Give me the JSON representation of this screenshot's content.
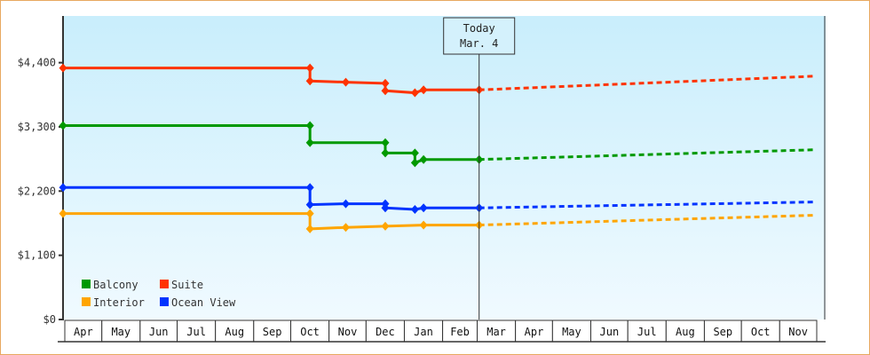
{
  "chart_data": {
    "type": "line",
    "title": "",
    "xlabel": "",
    "ylabel": "",
    "ylim": [
      0,
      5200
    ],
    "y_ticks": [
      0,
      1100,
      2200,
      3300,
      4400
    ],
    "y_tick_labels": [
      "$0",
      "$1,100",
      "$2,200",
      "$3,300",
      "$4,400"
    ],
    "x_tick_labels": [
      "Apr",
      "May",
      "Jun",
      "Jul",
      "Aug",
      "Sep",
      "Oct",
      "Nov",
      "Dec",
      "Jan",
      "Feb",
      "Mar",
      "Apr",
      "May",
      "Jun",
      "Jul",
      "Aug",
      "Sep",
      "Oct",
      "Nov"
    ],
    "grid": false,
    "legend_placement": "bottom-left",
    "today_marker": {
      "line1": "Today",
      "line2": "Mar. 4",
      "date": "Mar 4"
    },
    "series": [
      {
        "name": "Suite",
        "color": "#ff3300",
        "points": [
          [
            "Apr 1",
            4309
          ],
          [
            "Oct 18",
            4309
          ],
          [
            "Oct 18",
            4086
          ],
          [
            "Nov 16",
            4066
          ],
          [
            "Dec 18",
            4046
          ],
          [
            "Dec 18",
            3919
          ],
          [
            "Jan 11",
            3884
          ],
          [
            "Jan 18",
            3934
          ],
          [
            "Mar 4",
            3934
          ]
        ],
        "projection": [
          [
            "Mar 4",
            3934
          ],
          [
            "Nov 30",
            4168
          ]
        ]
      },
      {
        "name": "Balcony",
        "color": "#009900",
        "points": [
          [
            "Apr 1",
            3323
          ],
          [
            "Oct 18",
            3323
          ],
          [
            "Oct 18",
            3030
          ],
          [
            "Dec 18",
            3030
          ],
          [
            "Dec 18",
            2852
          ],
          [
            "Jan 11",
            2852
          ],
          [
            "Jan 11",
            2685
          ],
          [
            "Jan 18",
            2741
          ],
          [
            "Mar 4",
            2741
          ]
        ],
        "projection": [
          [
            "Mar 4",
            2741
          ],
          [
            "Nov 30",
            2908
          ]
        ]
      },
      {
        "name": "Ocean View",
        "color": "#0033ff",
        "points": [
          [
            "Apr 1",
            2261
          ],
          [
            "Oct 18",
            2261
          ],
          [
            "Oct 18",
            1968
          ],
          [
            "Nov 16",
            1983
          ],
          [
            "Dec 18",
            1983
          ],
          [
            "Dec 18",
            1912
          ],
          [
            "Jan 11",
            1886
          ],
          [
            "Jan 18",
            1912
          ],
          [
            "Mar 4",
            1912
          ]
        ],
        "projection": [
          [
            "Mar 4",
            1912
          ],
          [
            "Nov 30",
            2013
          ]
        ]
      },
      {
        "name": "Interior",
        "color": "#ffa500",
        "points": [
          [
            "Apr 1",
            1816
          ],
          [
            "Oct 18",
            1816
          ],
          [
            "Oct 18",
            1552
          ],
          [
            "Nov 16",
            1578
          ],
          [
            "Dec 18",
            1598
          ],
          [
            "Jan 18",
            1618
          ],
          [
            "Mar 4",
            1618
          ]
        ],
        "projection": [
          [
            "Mar 4",
            1618
          ],
          [
            "Nov 30",
            1786
          ]
        ]
      }
    ],
    "legend": [
      {
        "name": "Balcony",
        "color": "#009900"
      },
      {
        "name": "Suite",
        "color": "#ff3300"
      },
      {
        "name": "Interior",
        "color": "#ffa500"
      },
      {
        "name": "Ocean View",
        "color": "#0033ff"
      }
    ]
  }
}
